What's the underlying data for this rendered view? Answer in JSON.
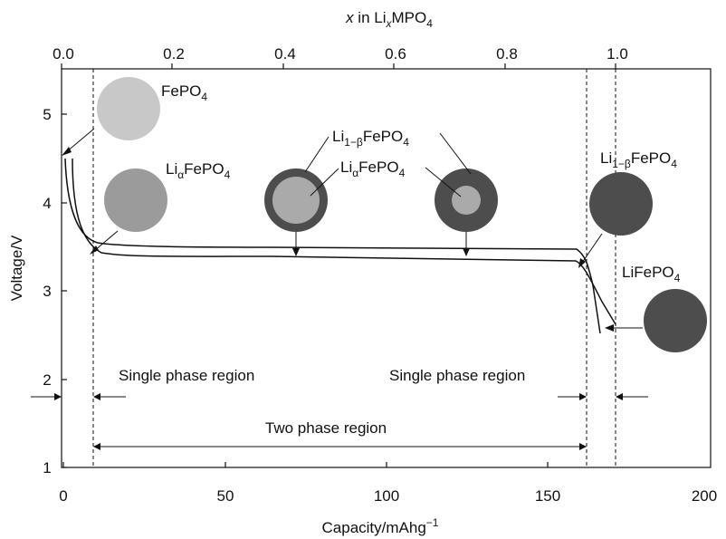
{
  "top_axis": {
    "title_var": "x",
    "title_rest": " in Li",
    "title_sub": "x",
    "title_tail": "MPO",
    "title_tail_sub": "4",
    "ticks": [
      "0.0",
      "0.2",
      "0.4",
      "0.6",
      "0.8",
      "1.0"
    ]
  },
  "y_axis": {
    "label": "Voltage/V",
    "ticks": [
      "1",
      "2",
      "3",
      "4",
      "5"
    ]
  },
  "x_axis": {
    "label": "Capacity/mAhg",
    "label_sup": "−1",
    "ticks": [
      "0",
      "50",
      "100",
      "150",
      "200"
    ]
  },
  "labels": {
    "fepo4": {
      "main": "FePO",
      "sub": "4"
    },
    "li_alpha_1": {
      "a": "Li",
      "sub1": "α",
      "b": "FePO",
      "sub2": "4"
    },
    "li_1mb_1": {
      "a": "Li",
      "sub1": "1−β",
      "b": "FePO",
      "sub2": "4"
    },
    "li_alpha_2": {
      "a": "Li",
      "sub1": "α",
      "b": "FePO",
      "sub2": "4"
    },
    "li_1mb_2": {
      "a": "Li",
      "sub1": "1−β",
      "b": "FePO",
      "sub2": "4"
    },
    "lifepo4": {
      "main": "LiFePO",
      "sub": "4"
    }
  },
  "regions": {
    "single_left": "Single phase region",
    "single_right": "Single phase region",
    "two_phase": "Two phase region"
  },
  "colors": {
    "light_gray": "#c8c8c8",
    "mid_gray": "#9b9b9b",
    "dark_gray": "#4d4d4d",
    "core_gray": "#aaaaaa"
  }
}
